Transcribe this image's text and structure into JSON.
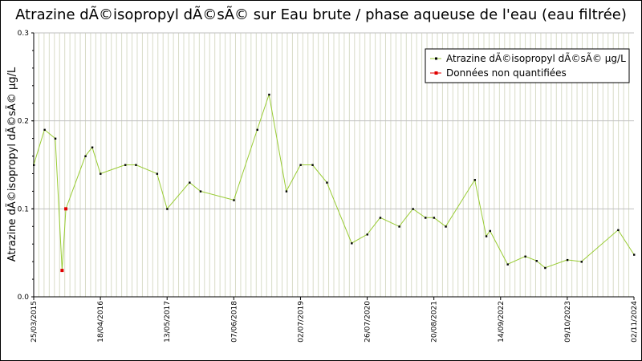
{
  "chart_data": {
    "type": "line",
    "title": "Atrazine dÃ©isopropyl dÃ©sÃ© sur Eau brute / phase aqueuse de l'eau (eau filtrée)",
    "ylabel": "Atrazine dÃ©isopropyl dÃ©sÃ© µg/L",
    "xlabel": "",
    "ylim": [
      0,
      0.3
    ],
    "yticks": [
      "0.0",
      "0.1",
      "0.2",
      "0.3"
    ],
    "xlim": [
      "2015-03-25",
      "2024-11-02"
    ],
    "xticks": [
      {
        "date": "2015-03-25",
        "label": "25/03/2015"
      },
      {
        "date": "2016-04-18",
        "label": "18/04/2016"
      },
      {
        "date": "2017-05-13",
        "label": "13/05/2017"
      },
      {
        "date": "2018-06-07",
        "label": "07/06/2018"
      },
      {
        "date": "2019-07-02",
        "label": "02/07/2019"
      },
      {
        "date": "2020-07-26",
        "label": "26/07/2020"
      },
      {
        "date": "2021-08-20",
        "label": "20/08/2021"
      },
      {
        "date": "2022-09-14",
        "label": "14/09/2022"
      },
      {
        "date": "2023-10-09",
        "label": "09/10/2023"
      },
      {
        "date": "2024-11-02",
        "label": "02/11/2024"
      }
    ],
    "grid": true,
    "legend_position": "top-right",
    "colors": {
      "line": "#99cc33",
      "point": "#000000",
      "unquantified": "#e00000",
      "grid": "#d8dcc8"
    },
    "series": [
      {
        "name": "Atrazine dÃ©isopropyl dÃ©sÃ© µg/L",
        "x": [
          "2015-03-25",
          "2015-05-27",
          "2015-07-29",
          "2015-09-07",
          "2015-09-29",
          "2016-01-21",
          "2016-03-01",
          "2016-04-18",
          "2016-09-10",
          "2016-11-11",
          "2017-03-15",
          "2017-05-13",
          "2017-09-21",
          "2017-11-24",
          "2018-06-07",
          "2018-10-22",
          "2018-12-30",
          "2019-04-10",
          "2019-07-02",
          "2019-09-10",
          "2019-12-03",
          "2020-04-26",
          "2020-07-26",
          "2020-10-10",
          "2021-01-29",
          "2021-04-19",
          "2021-07-01",
          "2021-08-20",
          "2021-10-28",
          "2022-04-16",
          "2022-06-22",
          "2022-07-14",
          "2022-10-25",
          "2023-02-05",
          "2023-04-12",
          "2023-06-01",
          "2023-10-09",
          "2023-12-31",
          "2024-08-01",
          "2024-11-02"
        ],
        "y": [
          0.15,
          0.19,
          0.18,
          0.03,
          0.1,
          0.16,
          0.17,
          0.14,
          0.15,
          0.15,
          0.14,
          0.1,
          0.13,
          0.12,
          0.11,
          0.19,
          0.23,
          0.12,
          0.15,
          0.15,
          0.13,
          0.061,
          0.071,
          0.09,
          0.08,
          0.1,
          0.09,
          0.09,
          0.08,
          0.133,
          0.069,
          0.075,
          0.037,
          0.046,
          0.041,
          0.033,
          0.042,
          0.04,
          0.076,
          0.048
        ]
      }
    ],
    "unquantified_indices": [
      3,
      4
    ],
    "legend": [
      {
        "label": "Atrazine dÃ©isopropyl dÃ©sÃ© µg/L",
        "marker": "point"
      },
      {
        "label": "Données non quantifiées",
        "marker": "unquantified"
      }
    ]
  }
}
